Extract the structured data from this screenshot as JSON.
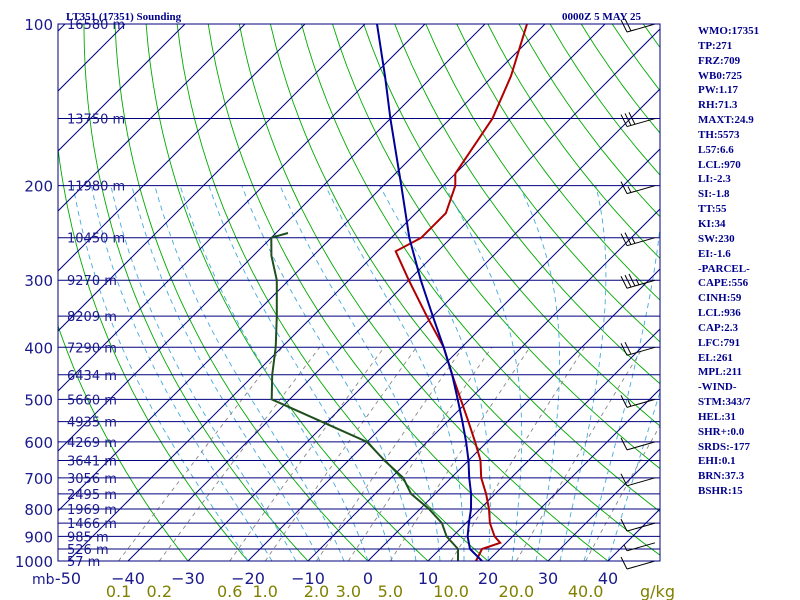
{
  "chart_data": {
    "type": "line",
    "chart_kind": "skew-T log-P sounding",
    "title": "LT351 (17351) Sounding",
    "valid_time": "0000Z  5 MAY 25",
    "y_axis": {
      "unit_label": "mb",
      "scale": "log",
      "range": [
        1000,
        100
      ]
    },
    "x_axis": {
      "range": [
        -50,
        50
      ]
    },
    "pressure_ticks": [
      100,
      200,
      300,
      400,
      500,
      600,
      700,
      800,
      900,
      1000
    ],
    "temperature_ticks": [
      {
        "t": -50,
        "label": "-50"
      },
      {
        "t": -40,
        "label": "−40"
      },
      {
        "t": -30,
        "label": "−30"
      },
      {
        "t": -20,
        "label": "−20"
      },
      {
        "t": -10,
        "label": "−10"
      },
      {
        "t": 0,
        "label": "0"
      },
      {
        "t": 10,
        "label": "10"
      },
      {
        "t": 20,
        "label": "20"
      },
      {
        "t": 30,
        "label": "30"
      },
      {
        "t": 40,
        "label": "40"
      }
    ],
    "mixing_ratio_labels": [
      "0.1",
      "0.2",
      "0.6",
      "1.0",
      "2.0",
      "3.0",
      "5.0",
      "10.0",
      "20.0",
      "40.0"
    ],
    "mixing_ratio_unit": "g/kg",
    "height_labels": [
      {
        "p": 100,
        "label": "16580 m"
      },
      {
        "p": 150,
        "label": "13750 m"
      },
      {
        "p": 200,
        "label": "11980 m"
      },
      {
        "p": 250,
        "label": "10450 m"
      },
      {
        "p": 300,
        "label": "9270 m"
      },
      {
        "p": 350,
        "label": "8209 m"
      },
      {
        "p": 400,
        "label": "7290 m"
      },
      {
        "p": 450,
        "label": "6434 m"
      },
      {
        "p": 500,
        "label": "5660 m"
      },
      {
        "p": 550,
        "label": "4935 m"
      },
      {
        "p": 600,
        "label": "4269 m"
      },
      {
        "p": 650,
        "label": "3641 m"
      },
      {
        "p": 700,
        "label": "3056 m"
      },
      {
        "p": 750,
        "label": "2495 m"
      },
      {
        "p": 800,
        "label": "1969 m"
      },
      {
        "p": 850,
        "label": "1466 m"
      },
      {
        "p": 900,
        "label": "985 m"
      },
      {
        "p": 950,
        "label": "526 m"
      },
      {
        "p": 1000,
        "label": "57 m"
      }
    ],
    "series": [
      {
        "role": "temperature",
        "color": "#b00000",
        "points": [
          [
            1000,
            18
          ],
          [
            950,
            17
          ],
          [
            925,
            19
          ],
          [
            900,
            17
          ],
          [
            850,
            14
          ],
          [
            800,
            11.5
          ],
          [
            750,
            8.5
          ],
          [
            700,
            5
          ],
          [
            650,
            2
          ],
          [
            600,
            -2
          ],
          [
            550,
            -6.5
          ],
          [
            500,
            -11.5
          ],
          [
            450,
            -17
          ],
          [
            400,
            -23
          ],
          [
            350,
            -31
          ],
          [
            300,
            -40
          ],
          [
            265,
            -47
          ],
          [
            250,
            -45
          ],
          [
            225,
            -45
          ],
          [
            200,
            -48
          ],
          [
            190,
            -50
          ],
          [
            150,
            -53
          ],
          [
            125,
            -57
          ],
          [
            100,
            -63
          ]
        ]
      },
      {
        "role": "dewpoint",
        "color": "#1f4f1f",
        "points": [
          [
            1000,
            15
          ],
          [
            950,
            13
          ],
          [
            900,
            9
          ],
          [
            850,
            6
          ],
          [
            800,
            1.5
          ],
          [
            750,
            -4
          ],
          [
            700,
            -8
          ],
          [
            650,
            -14
          ],
          [
            600,
            -20
          ],
          [
            550,
            -31
          ],
          [
            500,
            -43
          ],
          [
            450,
            -47
          ],
          [
            400,
            -51
          ],
          [
            350,
            -56
          ],
          [
            300,
            -62
          ],
          [
            270,
            -67
          ],
          [
            250,
            -70
          ],
          [
            245,
            -68
          ]
        ]
      },
      {
        "role": "parcel",
        "color": "#00009a",
        "points": [
          [
            1000,
            19
          ],
          [
            950,
            15
          ],
          [
            900,
            12.5
          ],
          [
            850,
            10.5
          ],
          [
            800,
            8.5
          ],
          [
            750,
            6
          ],
          [
            700,
            3
          ],
          [
            650,
            0
          ],
          [
            600,
            -3.5
          ],
          [
            550,
            -7.5
          ],
          [
            500,
            -12
          ],
          [
            450,
            -17
          ],
          [
            400,
            -23
          ],
          [
            350,
            -30
          ],
          [
            300,
            -38
          ],
          [
            250,
            -47
          ],
          [
            200,
            -57
          ],
          [
            150,
            -70
          ],
          [
            125,
            -78
          ],
          [
            100,
            -88
          ]
        ]
      }
    ],
    "wind_barbs": [
      {
        "p": 1000,
        "speed_kt": 10
      },
      {
        "p": 925,
        "speed_kt": 5
      },
      {
        "p": 850,
        "speed_kt": 10
      },
      {
        "p": 700,
        "speed_kt": 10
      },
      {
        "p": 600,
        "speed_kt": 10
      },
      {
        "p": 500,
        "speed_kt": 15
      },
      {
        "p": 400,
        "speed_kt": 20
      },
      {
        "p": 300,
        "speed_kt": 35
      },
      {
        "p": 250,
        "speed_kt": 25
      },
      {
        "p": 200,
        "speed_kt": 15
      },
      {
        "p": 150,
        "speed_kt": 30
      },
      {
        "p": 100,
        "speed_kt": 20
      }
    ]
  },
  "indices": [
    "WMO:17351",
    "TP:271",
    "FRZ:709",
    "WB0:725",
    "PW:1.17",
    "RH:71.3",
    "MAXT:24.9",
    "TH:5573",
    "L57:6.6",
    "LCL:970",
    "LI:-2.3",
    "SI:-1.8",
    "TT:55",
    "KI:34",
    "SW:230",
    "EI:-1.6",
    "-PARCEL-",
    "CAPE:556",
    "CINH:59",
    "LCL:936",
    "CAP:2.3",
    "LFC:791",
    "EL:261",
    "MPL:211",
    "-WIND-",
    "STM:343/7",
    "HEL:31",
    "SHR+:0.0",
    "SRDS:-177",
    "EHI:0.1",
    "BRN:37.3",
    "BSHR:15"
  ],
  "colors": {
    "isobar": "#00007f",
    "isotherm": "#00007f",
    "dry_adiabat": "#00aa00",
    "moist_adiabat": "#44aadd",
    "mixing_ratio": "#888888",
    "mixing_label": "#808000",
    "text": "#00008b",
    "barb": "#000000"
  }
}
